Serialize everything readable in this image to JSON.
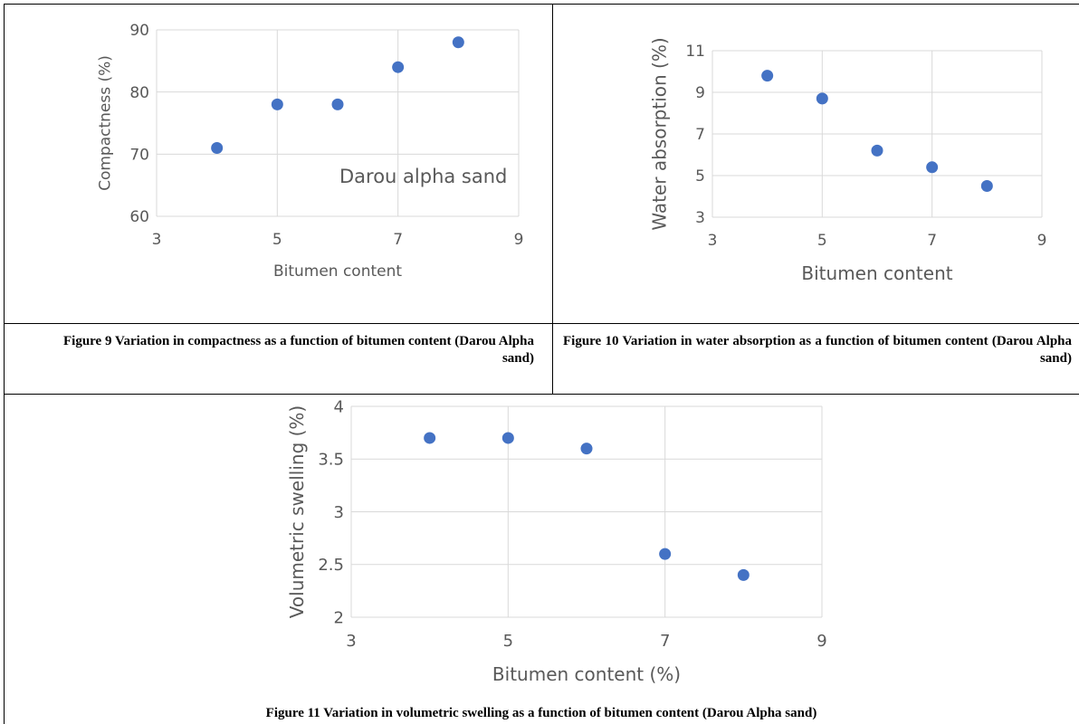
{
  "captions": {
    "fig9": "Figure 9 Variation in compactness as a function of bitumen content (Darou Alpha sand)",
    "fig10": "Figure 10 Variation in water absorption as a function of bitumen content (Darou Alpha sand)",
    "fig11": "Figure 11 Variation in volumetric swelling as a function of bitumen content (Darou Alpha sand)"
  },
  "chart_data": [
    {
      "id": "fig9",
      "type": "scatter",
      "xlabel": "Bitumen content",
      "ylabel": "Compactness (%)",
      "annotation": "Darou alpha sand",
      "xlim": [
        3,
        9
      ],
      "ylim": [
        60,
        90
      ],
      "xticks": [
        3,
        5,
        7,
        9
      ],
      "yticks": [
        60,
        70,
        80,
        90
      ],
      "grid": true,
      "marker_color": "#4472C4",
      "x": [
        4,
        5,
        6,
        7,
        8
      ],
      "y": [
        71,
        78,
        78,
        84,
        88
      ]
    },
    {
      "id": "fig10",
      "type": "scatter",
      "xlabel": "Bitumen content",
      "ylabel": "Water absorption (%)",
      "xlim": [
        3,
        9
      ],
      "ylim": [
        3,
        11
      ],
      "xticks": [
        3,
        5,
        7,
        9
      ],
      "yticks": [
        3,
        5,
        7,
        9,
        11
      ],
      "grid": true,
      "marker_color": "#4472C4",
      "x": [
        4,
        5,
        6,
        7,
        8
      ],
      "y": [
        9.8,
        8.7,
        6.2,
        5.4,
        4.5
      ]
    },
    {
      "id": "fig11",
      "type": "scatter",
      "xlabel": "Bitumen content (%)",
      "ylabel": "Volumetric swelling (%)",
      "xlim": [
        3,
        9
      ],
      "ylim": [
        2,
        4
      ],
      "xticks": [
        3,
        5,
        7,
        9
      ],
      "yticks": [
        2,
        2.5,
        3,
        3.5,
        4
      ],
      "grid": true,
      "marker_color": "#4472C4",
      "x": [
        4,
        5,
        6,
        7,
        8
      ],
      "y": [
        3.7,
        3.7,
        3.6,
        2.6,
        2.4
      ]
    }
  ]
}
